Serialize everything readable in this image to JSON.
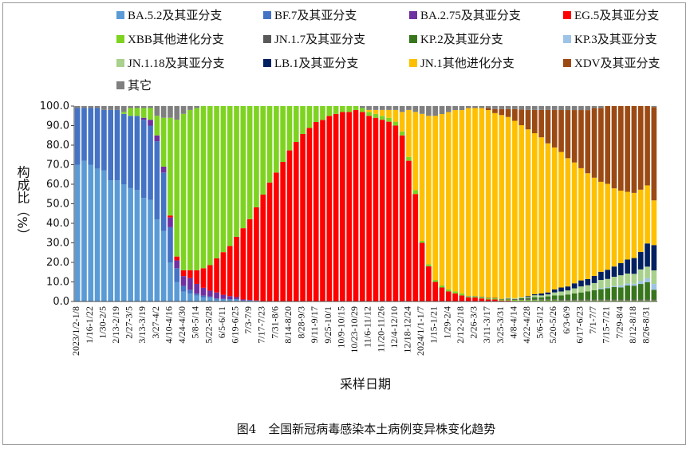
{
  "figure": {
    "caption": "图4　全国新冠病毒感染本土病例变异株变化趋势"
  },
  "chart_data": {
    "type": "bar",
    "stacked": true,
    "ylabel": "构成比（%）",
    "xlabel": "采样日期",
    "ylim": [
      0,
      100
    ],
    "yticks": [
      "0.0",
      "10.0",
      "20.0",
      "30.0",
      "40.0",
      "50.0",
      "60.0",
      "70.0",
      "80.0",
      "90.0",
      "100.0"
    ],
    "legend_position": "top",
    "grid": false,
    "x_tick_labels": [
      "2023/1/2-1/8",
      "1/16-1/22",
      "1/30-2/5",
      "2/13-2/19",
      "2/27-3/5",
      "3/13-3/19",
      "3/27-4/2",
      "4/10-4/16",
      "4/24-4/30",
      "5/8-5/14",
      "5/22-5/28",
      "6/5-6/11",
      "6/19-6/25",
      "7/3-7/9",
      "7/17-7/23",
      "7/31-8/6",
      "8/14-8/20",
      "8/28-9/3",
      "9/11-9/17",
      "9/25-10/1",
      "10/9-10/15",
      "10/23-10/29",
      "11/6-11/12",
      "11/20-11/26",
      "12/4-12/10",
      "12/18-12/24",
      "2024/1/1-1/7",
      "1/15-1/21",
      "1/29-2/4",
      "2/12-2/18",
      "2/26-3/3",
      "3/11-3/17",
      "3/25-3/31",
      "4/8-4/14",
      "4/22-4/28",
      "5/6-5/12",
      "5/20-5/26",
      "6/3-6/9",
      "6/17-6/23",
      "7/1-7/7",
      "7/15-7/21",
      "7/29-8/4",
      "8/12-8/18",
      "8/26-8/31"
    ],
    "series": [
      {
        "name": "BA.5.2及其亚分支",
        "color": "#5b9bd5",
        "values": [
          70,
          72,
          70,
          68,
          67,
          62,
          62,
          60,
          58,
          57,
          53,
          52,
          42,
          36,
          20,
          10,
          5,
          4,
          3,
          2,
          2,
          1,
          1,
          1,
          1,
          0.5,
          0.5,
          0.3,
          0.2,
          0.1,
          0,
          0,
          0,
          0,
          0,
          0,
          0,
          0,
          0,
          0,
          0,
          0,
          0,
          0,
          0,
          0,
          0,
          0,
          0,
          0,
          0,
          0,
          0,
          0,
          0,
          0,
          0,
          0,
          0,
          0,
          0,
          0,
          0,
          0,
          0,
          0,
          0,
          0,
          0,
          0,
          0,
          0,
          0,
          0,
          0,
          0,
          0,
          0,
          0,
          0,
          0,
          0,
          0,
          0,
          0,
          0,
          0,
          0
        ]
      },
      {
        "name": "BF.7及其亚分支",
        "color": "#4472c4",
        "values": [
          29,
          27,
          29,
          31,
          31,
          36,
          36,
          36,
          37,
          38,
          40,
          38,
          40,
          30,
          18,
          7,
          3,
          2,
          1,
          1,
          0.5,
          0.5,
          0.3,
          0.2,
          0.2,
          0,
          0,
          0,
          0,
          0,
          0,
          0,
          0,
          0,
          0,
          0,
          0,
          0,
          0,
          0,
          0,
          0,
          0,
          0,
          0,
          0,
          0,
          0,
          0,
          0,
          0,
          0,
          0,
          0,
          0,
          0,
          0,
          0,
          0,
          0,
          0,
          0,
          0,
          0,
          0,
          0,
          0,
          0,
          0,
          0,
          0,
          0,
          0,
          0,
          0,
          0,
          0,
          0,
          0,
          0,
          0,
          0,
          0,
          0,
          0,
          0,
          0,
          0
        ]
      },
      {
        "name": "BA.2.75及其亚分支",
        "color": "#7030a0",
        "values": [
          0,
          0,
          0,
          0,
          0,
          0,
          0,
          0,
          0,
          0,
          1,
          3,
          3,
          3,
          5,
          4,
          5,
          6,
          5,
          4,
          3,
          3,
          2,
          1.5,
          1,
          0.5,
          0.3,
          0.2,
          0,
          0,
          0,
          0,
          0,
          0,
          0,
          0,
          0,
          0,
          0,
          0,
          0,
          0,
          0,
          0,
          0,
          0,
          0,
          0,
          0,
          0,
          0,
          0,
          0,
          0,
          0,
          0,
          0,
          0,
          0,
          0,
          0,
          0,
          0,
          0,
          0,
          0,
          0,
          0,
          0,
          0,
          0,
          0,
          0,
          0,
          0,
          0,
          0,
          0,
          0,
          0,
          0,
          0,
          0,
          0,
          0,
          0,
          0,
          0
        ]
      },
      {
        "name": "EG.5及其亚分支",
        "color": "#ff0000",
        "values": [
          0,
          0,
          0,
          0,
          0,
          0,
          0,
          0,
          0,
          0,
          0,
          0,
          0,
          0,
          1,
          2,
          3,
          4,
          7,
          10,
          13,
          17,
          21,
          25,
          30,
          35,
          40,
          46,
          53,
          59,
          64,
          70,
          75,
          80,
          84,
          87,
          90,
          92,
          94,
          95,
          96,
          96,
          97,
          96,
          95,
          94,
          93,
          92,
          90,
          85,
          72,
          55,
          30,
          18,
          10,
          7,
          5,
          4,
          3,
          2,
          2,
          1.5,
          1,
          1,
          0.5,
          0.5,
          0.3,
          0.3,
          0.2,
          0.2,
          0.1,
          0.1,
          0.1,
          0,
          0,
          0,
          0,
          0,
          0,
          0,
          0,
          0,
          0,
          0,
          0,
          0,
          0,
          0
        ]
      },
      {
        "name": "XBB其他进化分支",
        "color": "#7ed321",
        "values": [
          0,
          0,
          0,
          0,
          0,
          0,
          0,
          1,
          4,
          4,
          5,
          6,
          10,
          25,
          50,
          70,
          80,
          82,
          83,
          83,
          81,
          76,
          72,
          70,
          65,
          60,
          56,
          50,
          44,
          38,
          33,
          28,
          22,
          18,
          14,
          11,
          8,
          7,
          5,
          4,
          3,
          3,
          2,
          2,
          2,
          2,
          2,
          2,
          2,
          2,
          2,
          2,
          1,
          1,
          1,
          1,
          1,
          1,
          1,
          0.5,
          0.5,
          0.5,
          0.5,
          0.5,
          0.5,
          0.5,
          0.5,
          0.5,
          0.5,
          0.5,
          0.5,
          0.5,
          0.5,
          0.5,
          0.5,
          0.5,
          0.5,
          0.5,
          0.5,
          0.5,
          0.5,
          0.5,
          0.5,
          0.5,
          0.5,
          0.5,
          0.5,
          0.5
        ]
      },
      {
        "name": "JN.1.7及其亚分支",
        "color": "#595959",
        "values": [
          0,
          0,
          0,
          0,
          0,
          0,
          0,
          0,
          0,
          0,
          0,
          0,
          0,
          0,
          0,
          0,
          0,
          0,
          0,
          0,
          0,
          0,
          0,
          0,
          0,
          0,
          0,
          0,
          0,
          0,
          0,
          0,
          0,
          0,
          0,
          0,
          0,
          0,
          0,
          0,
          0,
          0,
          0,
          0,
          0,
          0,
          0,
          0,
          0,
          0,
          0,
          0,
          0,
          0,
          0,
          0,
          0,
          0,
          0,
          0.2,
          0.2,
          0.3,
          0.3,
          0.3,
          0.3,
          0.4,
          0.4,
          0.4,
          0.5,
          0.5,
          0.5,
          0.5,
          0.5,
          0.5,
          0.5,
          0.5,
          0.5,
          0.5,
          0.5,
          0.5,
          0.5,
          0.5,
          0.5,
          0.5,
          0.5,
          0.5,
          0.5,
          0.5
        ]
      },
      {
        "name": "KP.2及其亚分支",
        "color": "#38761d",
        "values": [
          0,
          0,
          0,
          0,
          0,
          0,
          0,
          0,
          0,
          0,
          0,
          0,
          0,
          0,
          0,
          0,
          0,
          0,
          0,
          0,
          0,
          0,
          0,
          0,
          0,
          0,
          0,
          0,
          0,
          0,
          0,
          0,
          0,
          0,
          0,
          0,
          0,
          0,
          0,
          0,
          0,
          0,
          0,
          0,
          0,
          0,
          0,
          0,
          0,
          0,
          0,
          0,
          0,
          0,
          0,
          0,
          0,
          0,
          0,
          0,
          0,
          0,
          0,
          0,
          0,
          0,
          0,
          0.5,
          0.5,
          1,
          1,
          1.5,
          2,
          2,
          2.5,
          3,
          3.5,
          4,
          4.5,
          5,
          5.5,
          6,
          6,
          7,
          7,
          8,
          9,
          5
        ]
      },
      {
        "name": "KP.3及其亚分支",
        "color": "#9dc3e6",
        "values": [
          0,
          0,
          0,
          0,
          0,
          0,
          0,
          0,
          0,
          0,
          0,
          0,
          0,
          0,
          0,
          0,
          0,
          0,
          0,
          0,
          0,
          0,
          0,
          0,
          0,
          0,
          0,
          0,
          0,
          0,
          0,
          0,
          0,
          0,
          0,
          0,
          0,
          0,
          0,
          0,
          0,
          0,
          0,
          0,
          0,
          0,
          0,
          0,
          0,
          0,
          0,
          0,
          0,
          0,
          0,
          0,
          0,
          0,
          0,
          0,
          0,
          0,
          0,
          0,
          0,
          0,
          0,
          0,
          0,
          0,
          0,
          0,
          0,
          0,
          0,
          0,
          0,
          0,
          0,
          0.5,
          0.5,
          0.5,
          1,
          1,
          1,
          1.5,
          2,
          3
        ]
      },
      {
        "name": "JN.1.18及其亚分支",
        "color": "#a9d18e",
        "values": [
          0,
          0,
          0,
          0,
          0,
          0,
          0,
          0,
          0,
          0,
          0,
          0,
          0,
          0,
          0,
          0,
          0,
          0,
          0,
          0,
          0,
          0,
          0,
          0,
          0,
          0,
          0,
          0,
          0,
          0,
          0,
          0,
          0,
          0,
          0,
          0,
          0,
          0,
          0,
          0,
          0,
          0,
          0,
          0,
          0,
          0,
          0,
          0,
          0,
          0,
          0,
          0,
          0,
          0,
          0,
          0,
          0,
          0,
          0,
          0,
          0,
          0,
          0,
          0,
          0,
          0.5,
          0.5,
          0.5,
          0.5,
          1,
          1,
          1,
          1.5,
          2,
          2,
          2.5,
          3,
          3,
          3.5,
          4,
          4,
          4.5,
          5,
          5,
          5,
          6,
          6,
          7
        ]
      },
      {
        "name": "LB.1及其亚分支",
        "color": "#002060",
        "values": [
          0,
          0,
          0,
          0,
          0,
          0,
          0,
          0,
          0,
          0,
          0,
          0,
          0,
          0,
          0,
          0,
          0,
          0,
          0,
          0,
          0,
          0,
          0,
          0,
          0,
          0,
          0,
          0,
          0,
          0,
          0,
          0,
          0,
          0,
          0,
          0,
          0,
          0,
          0,
          0,
          0,
          0,
          0,
          0,
          0,
          0,
          0,
          0,
          0,
          0,
          0,
          0,
          0,
          0,
          0,
          0,
          0,
          0,
          0,
          0,
          0,
          0,
          0,
          0,
          0,
          0,
          0,
          0,
          0.5,
          0.5,
          1,
          1,
          1.5,
          2,
          2,
          2.5,
          3,
          3,
          3.5,
          4,
          4.5,
          5,
          6,
          7,
          8,
          9,
          12,
          13
        ]
      },
      {
        "name": "JN.1其他进化分支",
        "color": "#ffc000",
        "values": [
          0,
          0,
          0,
          0,
          0,
          0,
          0,
          0,
          0,
          0,
          0,
          0,
          0,
          0,
          0,
          0,
          0,
          0,
          0,
          0,
          0,
          0,
          0,
          0,
          0,
          0,
          0,
          0,
          0,
          0,
          0,
          0,
          0,
          0,
          0,
          0,
          0,
          0,
          0,
          0,
          0,
          0,
          0,
          0,
          1,
          2,
          3,
          4,
          6,
          10,
          24,
          40,
          65,
          76,
          84,
          86,
          88,
          90,
          91,
          93,
          93,
          93,
          93,
          92,
          92,
          91,
          90,
          88,
          86,
          83,
          80,
          76,
          72,
          68,
          64,
          60,
          56,
          52,
          48,
          44,
          42,
          38,
          36,
          34,
          33,
          32,
          30,
          23
        ]
      },
      {
        "name": "XDV及其亚分支",
        "color": "#9c4a14",
        "values": [
          0,
          0,
          0,
          0,
          0,
          0,
          0,
          0,
          0,
          0,
          0,
          0,
          0,
          0,
          0,
          0,
          0,
          0,
          0,
          0,
          0,
          0,
          0,
          0,
          0,
          0,
          0,
          0,
          0,
          0,
          0,
          0,
          0,
          0,
          0,
          0,
          0,
          0,
          0,
          0,
          0,
          0,
          0,
          0,
          0,
          0,
          0,
          0,
          0,
          0,
          0,
          0,
          0,
          0,
          0,
          0,
          0,
          0,
          0,
          0,
          0,
          0,
          1,
          2,
          3,
          4,
          6,
          8,
          10,
          12,
          14,
          17,
          19,
          21,
          24,
          26,
          29,
          31,
          34,
          36,
          38,
          40,
          42,
          43,
          44,
          43,
          41,
          48
        ]
      },
      {
        "name": "其它",
        "color": "#7f7f7f",
        "values": [
          1,
          1,
          1,
          1,
          2,
          2,
          2,
          3,
          1,
          1,
          1,
          1,
          5,
          6,
          6,
          7,
          4,
          2,
          1,
          0,
          0,
          0,
          0,
          0,
          0,
          0,
          0,
          0,
          0,
          0,
          0,
          0,
          0,
          0,
          0,
          0,
          0,
          0,
          0,
          0,
          0,
          0,
          0,
          1,
          2,
          2,
          2,
          2,
          2,
          3,
          2,
          3,
          4,
          5,
          5,
          4,
          3,
          2,
          2,
          1,
          1,
          1,
          1,
          1.5,
          1.5,
          1.5,
          1.5,
          1.8,
          2,
          2,
          2,
          2,
          2,
          2,
          2,
          2,
          2,
          2,
          1,
          1,
          0,
          0,
          0,
          0,
          0,
          0,
          0,
          0.5
        ]
      }
    ]
  }
}
